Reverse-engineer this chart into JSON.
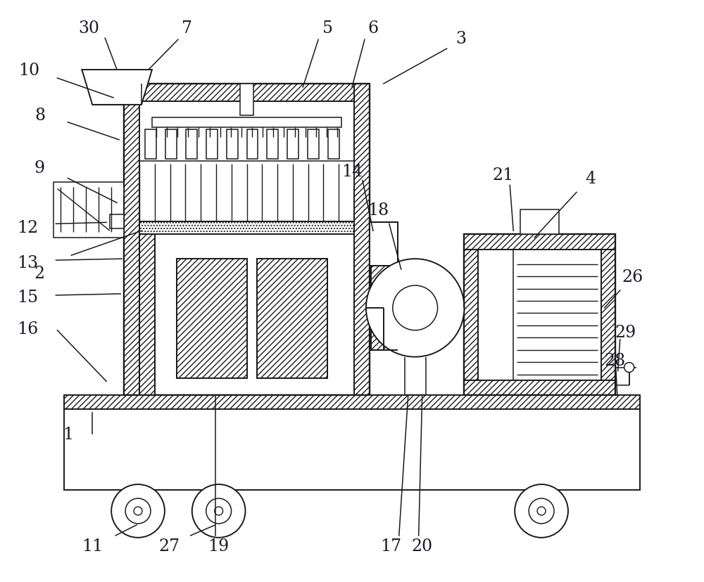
{
  "bg_color": "#ffffff",
  "lc": "#1a1a1a",
  "label_color": "#1a1a2a",
  "label_fontsize": 17,
  "lw": 1.4,
  "fig_width": 10.0,
  "fig_height": 8.29
}
